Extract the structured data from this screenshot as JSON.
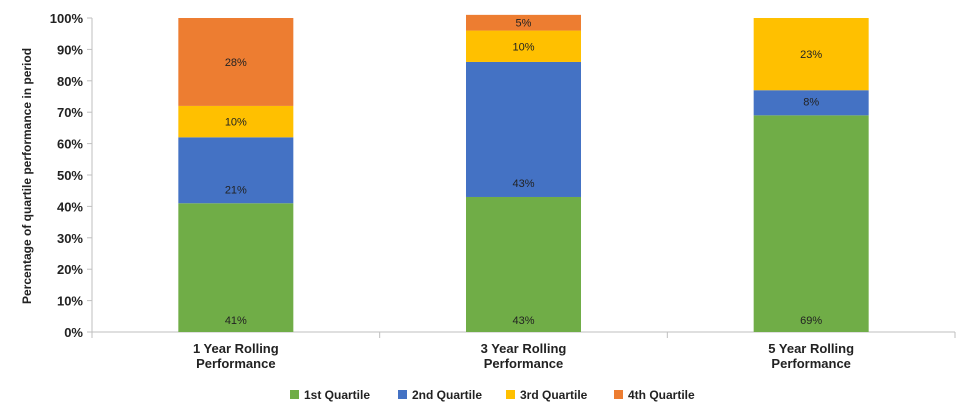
{
  "chart_data": {
    "type": "bar",
    "stacked": true,
    "categories": [
      [
        "1 Year Rolling",
        "Performance"
      ],
      [
        "3 Year Rolling",
        "Performance"
      ],
      [
        "5 Year Rolling",
        "Performance"
      ]
    ],
    "series": [
      {
        "name": "1st Quartile",
        "values": [
          41,
          43,
          69
        ],
        "labels": [
          "41%",
          "43%",
          "69%"
        ],
        "color": "#70ad47"
      },
      {
        "name": "2nd Quartile",
        "values": [
          21,
          43,
          8
        ],
        "labels": [
          "21%",
          "43%",
          "8%"
        ],
        "color": "#4472c4"
      },
      {
        "name": "3rd Quartile",
        "values": [
          10,
          10,
          23
        ],
        "labels": [
          "10%",
          "10%",
          "23%"
        ],
        "color": "#ffc000"
      },
      {
        "name": "4th Quartile",
        "values": [
          28,
          5,
          0
        ],
        "labels": [
          "28%",
          "5%",
          ""
        ],
        "color": "#ed7d31"
      }
    ],
    "ylabel": "Percentage of quartile performance in period",
    "xlabel": "",
    "ylim": [
      0,
      100
    ],
    "yticks": [
      "0%",
      "10%",
      "20%",
      "30%",
      "40%",
      "50%",
      "60%",
      "70%",
      "80%",
      "90%",
      "100%"
    ],
    "grid": false,
    "legend": "bottom"
  }
}
